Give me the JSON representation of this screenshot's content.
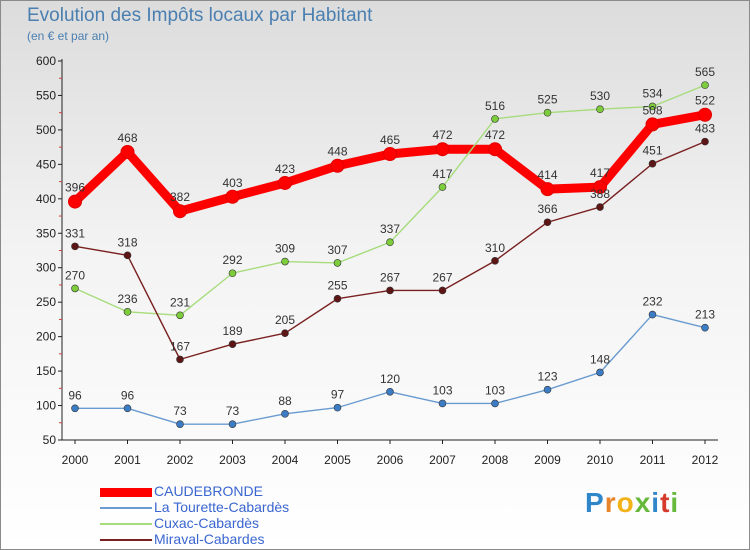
{
  "title": "Evolution des Impôts locaux par Habitant",
  "subtitle": "(en € et par an)",
  "brand": {
    "letters": [
      {
        "ch": "P",
        "color": "#2f86c8"
      },
      {
        "ch": "r",
        "color": "#e8852a"
      },
      {
        "ch": "o",
        "color": "#f2b318"
      },
      {
        "ch": "x",
        "color": "#66b93a"
      },
      {
        "ch": "i",
        "color": "#2f86c8"
      },
      {
        "ch": "t",
        "color": "#d63a2c"
      },
      {
        "ch": "i",
        "color": "#66b93a"
      }
    ]
  },
  "chart_data": {
    "type": "line",
    "title": "Evolution des Impôts locaux par Habitant",
    "subtitle": "(en € et par an)",
    "x": [
      "2000",
      "2001",
      "2002",
      "2003",
      "2004",
      "2005",
      "2006",
      "2007",
      "2008",
      "2009",
      "2010",
      "2011",
      "2012"
    ],
    "ylim": [
      50,
      600
    ],
    "yticks": [
      50,
      100,
      150,
      200,
      250,
      300,
      350,
      400,
      450,
      500,
      550,
      600
    ],
    "grid": false,
    "legend_position": "bottom-left",
    "series": [
      {
        "name": "CAUDEBRONDE",
        "color": "#ff0000",
        "marker": "#e00000",
        "thick": true,
        "values": [
          396,
          468,
          382,
          403,
          423,
          448,
          465,
          472,
          472,
          414,
          417,
          508,
          522
        ]
      },
      {
        "name": "La Tourette-Cabardès",
        "color": "#6a9bd0",
        "marker": "#3c7cc4",
        "thick": false,
        "values": [
          96,
          96,
          73,
          73,
          88,
          97,
          120,
          103,
          103,
          123,
          148,
          232,
          213
        ]
      },
      {
        "name": "Cuxac-Cabardès",
        "color": "#a6dc7c",
        "marker": "#7ccc3c",
        "thick": false,
        "values": [
          270,
          236,
          231,
          292,
          309,
          307,
          337,
          417,
          516,
          525,
          530,
          534,
          565
        ]
      },
      {
        "name": "Miraval-Cabardes",
        "color": "#7a2020",
        "marker": "#5e1515",
        "thick": false,
        "values": [
          331,
          318,
          167,
          189,
          205,
          255,
          267,
          267,
          310,
          366,
          388,
          451,
          483
        ]
      }
    ]
  }
}
